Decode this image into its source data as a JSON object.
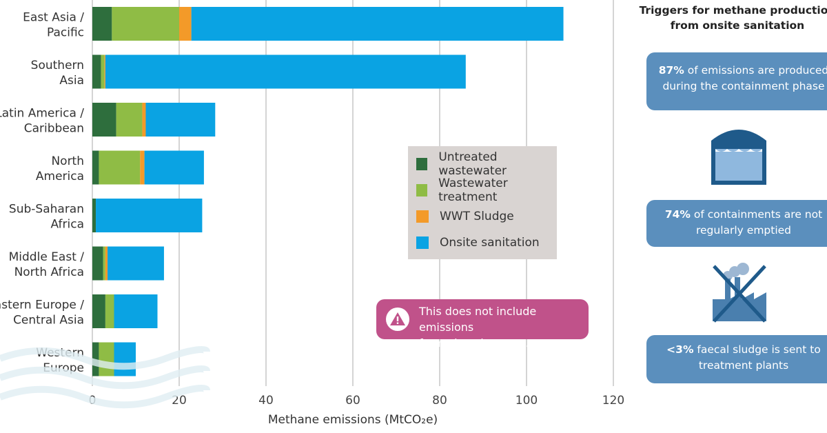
{
  "chart_data": {
    "type": "bar",
    "orientation": "horizontal",
    "stacked": true,
    "categories": [
      [
        "East Asia /",
        "Pacific"
      ],
      [
        "Southern",
        "Asia"
      ],
      [
        "Latin America /",
        "Caribbean"
      ],
      [
        "North",
        "America"
      ],
      [
        "Sub-Saharan",
        "Africa"
      ],
      [
        "Middle East /",
        "North Africa"
      ],
      [
        "Eastern Europe /",
        "Central Asia"
      ],
      [
        "Western",
        "Europe"
      ]
    ],
    "series": [
      {
        "name": "Untreated wastewater",
        "color": "#2e6e3d",
        "values": [
          4.5,
          2,
          5.5,
          1.5,
          0.8,
          2.5,
          3,
          1.5
        ]
      },
      {
        "name": "Wastewater treatment",
        "color": "#8fbc45",
        "values": [
          15.5,
          0.8,
          6,
          9.5,
          0,
          0.5,
          2,
          3.5
        ]
      },
      {
        "name": "WWT Sludge",
        "color": "#f39a29",
        "values": [
          2.8,
          0.2,
          0.8,
          1,
          0,
          0.5,
          0,
          0
        ]
      },
      {
        "name": "Onsite sanitation",
        "color": "#0aa3e3",
        "values": [
          85.7,
          83,
          16,
          13.7,
          24.5,
          13,
          10,
          5
        ]
      }
    ],
    "xlabel": "Methane emissions (MtCO₂e)",
    "xlim": [
      0,
      120
    ],
    "xticks": [
      0,
      20,
      40,
      60,
      80,
      100,
      120
    ],
    "grid": true,
    "legend_position": "center-right"
  },
  "note": {
    "text": "This does not include emissions\nfrom closed sewers.",
    "color": "#c0528a"
  },
  "sidebar": {
    "title": "Triggers for methane production\nfrom onsite sanitation",
    "facts": [
      {
        "highlight": "87%",
        "text": " of emissions are produced during the containment phase"
      },
      {
        "highlight": "74%",
        "text": " of containments are not regularly emptied"
      },
      {
        "highlight": "<3%",
        "text": " faecal sludge is sent to treatment plants"
      }
    ],
    "box_color": "#5b8fbd",
    "icons": [
      "containment-tank-icon",
      "crossed-out-treatment-plant-icon"
    ]
  }
}
